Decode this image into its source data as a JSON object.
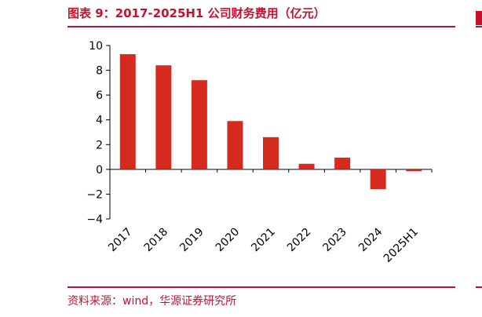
{
  "header": {
    "title": "图表 9：2017-2025H1 公司财务费用（亿元）"
  },
  "footer": {
    "source": "资料来源：wind，华源证券研究所"
  },
  "colors": {
    "accent": "#C8102E",
    "bar": "#D52B1E",
    "axis": "#000000"
  },
  "chart_data": {
    "type": "bar",
    "title": "图表 9：2017-2025H1 公司财务费用（亿元）",
    "xlabel": "",
    "ylabel": "",
    "categories": [
      "2017",
      "2018",
      "2019",
      "2020",
      "2021",
      "2022",
      "2023",
      "2024",
      "2025H1"
    ],
    "values": [
      9.3,
      8.4,
      7.2,
      3.9,
      2.6,
      0.45,
      0.95,
      -1.6,
      -0.15
    ],
    "ylim": [
      -4,
      10
    ],
    "yticks": [
      10,
      8,
      6,
      4,
      2,
      0,
      -2,
      -4
    ],
    "ytick_labels": [
      "10",
      "8",
      "6",
      "4",
      "2",
      "0",
      "−2",
      "−4"
    ],
    "grid": false,
    "legend": "none"
  }
}
